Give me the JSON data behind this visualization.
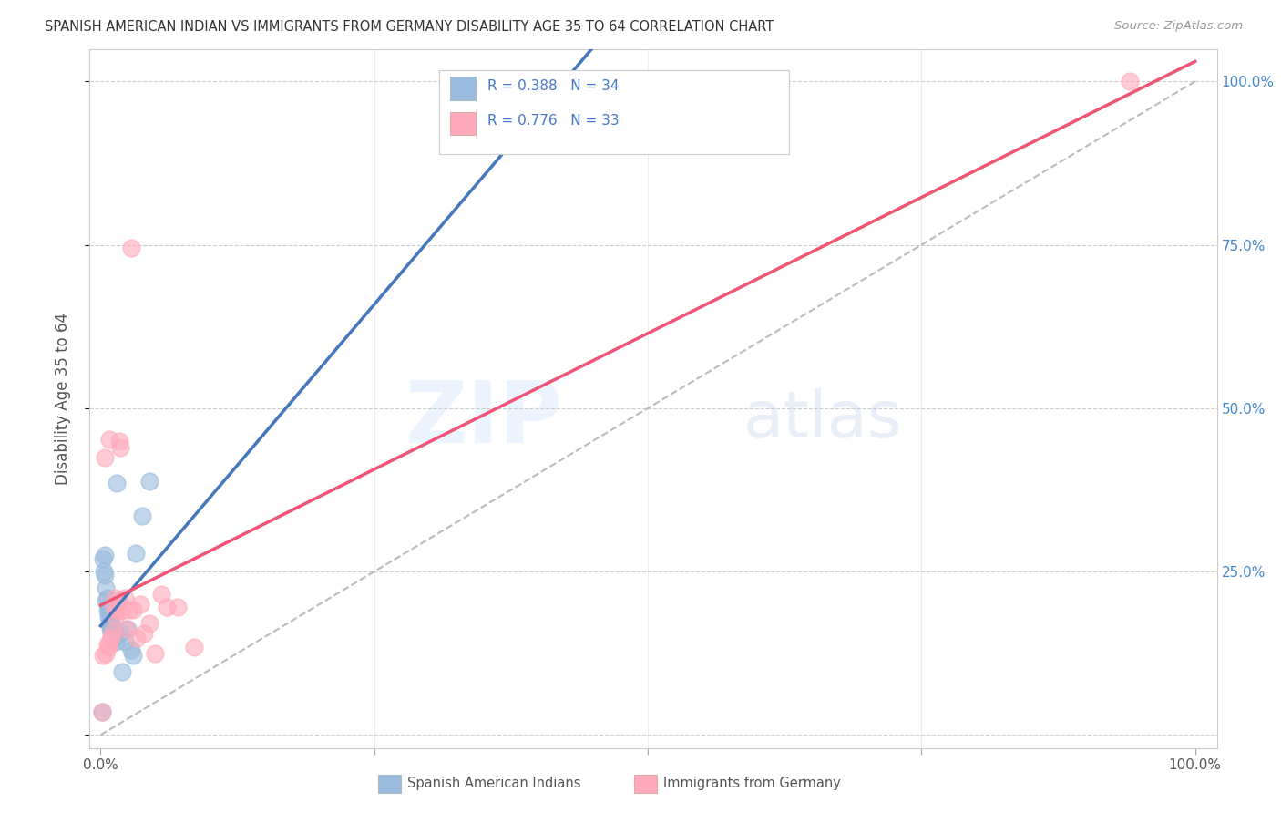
{
  "title": "SPANISH AMERICAN INDIAN VS IMMIGRANTS FROM GERMANY DISABILITY AGE 35 TO 64 CORRELATION CHART",
  "source": "Source: ZipAtlas.com",
  "ylabel": "Disability Age 35 to 64",
  "legend_labels": [
    "Spanish American Indians",
    "Immigrants from Germany"
  ],
  "R_blue": 0.388,
  "N_blue": 34,
  "R_pink": 0.776,
  "N_pink": 33,
  "blue_color": "#99BBDD",
  "pink_color": "#FFAABB",
  "blue_line_color": "#4477BB",
  "pink_line_color": "#EE5577",
  "watermark_zip": "ZIP",
  "watermark_atlas": "atlas",
  "blue_scatter_x": [
    0.001,
    0.002,
    0.003,
    0.004,
    0.004,
    0.005,
    0.005,
    0.006,
    0.006,
    0.007,
    0.007,
    0.008,
    0.008,
    0.009,
    0.009,
    0.01,
    0.01,
    0.01,
    0.011,
    0.011,
    0.012,
    0.013,
    0.014,
    0.015,
    0.016,
    0.018,
    0.02,
    0.022,
    0.025,
    0.028,
    0.03,
    0.032,
    0.038,
    0.045
  ],
  "blue_scatter_y": [
    0.035,
    0.27,
    0.25,
    0.245,
    0.275,
    0.205,
    0.225,
    0.19,
    0.21,
    0.18,
    0.195,
    0.17,
    0.188,
    0.162,
    0.178,
    0.158,
    0.168,
    0.172,
    0.152,
    0.162,
    0.148,
    0.158,
    0.142,
    0.385,
    0.152,
    0.157,
    0.097,
    0.142,
    0.162,
    0.13,
    0.122,
    0.278,
    0.335,
    0.388
  ],
  "pink_scatter_x": [
    0.001,
    0.002,
    0.004,
    0.005,
    0.006,
    0.007,
    0.008,
    0.009,
    0.01,
    0.011,
    0.012,
    0.013,
    0.014,
    0.015,
    0.016,
    0.017,
    0.018,
    0.02,
    0.022,
    0.024,
    0.026,
    0.028,
    0.03,
    0.033,
    0.036,
    0.04,
    0.045,
    0.05,
    0.055,
    0.06,
    0.07,
    0.085,
    0.94
  ],
  "pink_scatter_y": [
    0.035,
    0.122,
    0.425,
    0.125,
    0.138,
    0.135,
    0.452,
    0.145,
    0.15,
    0.158,
    0.195,
    0.21,
    0.182,
    0.192,
    0.205,
    0.45,
    0.44,
    0.19,
    0.21,
    0.162,
    0.192,
    0.745,
    0.192,
    0.148,
    0.2,
    0.155,
    0.17,
    0.125,
    0.215,
    0.195,
    0.195,
    0.135,
    1.0
  ],
  "xlim": [
    0.0,
    1.0
  ],
  "ylim": [
    0.0,
    1.0
  ],
  "xticks": [
    0.0,
    0.25,
    0.5,
    0.75,
    1.0
  ],
  "yticks": [
    0.0,
    0.25,
    0.5,
    0.75,
    1.0
  ],
  "x_labels": [
    "0.0%",
    "",
    "",
    "",
    "100.0%"
  ],
  "y_right_labels": [
    "",
    "25.0%",
    "50.0%",
    "75.0%",
    "100.0%"
  ]
}
